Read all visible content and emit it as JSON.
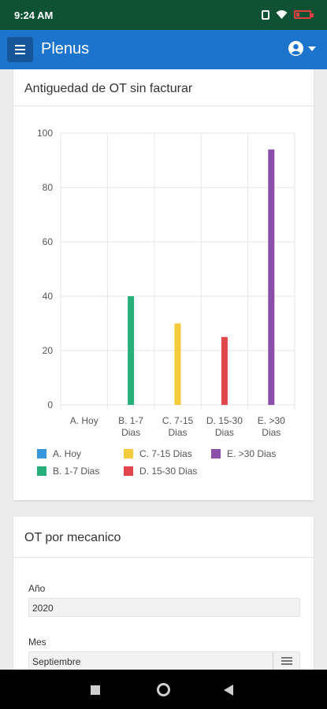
{
  "status_bar": {
    "time": "9:24 AM",
    "icons": [
      "vibrate-icon",
      "wifi-icon",
      "battery-low-icon"
    ]
  },
  "app_bar": {
    "title": "Plenus",
    "menu_icon": "hamburger-menu-icon",
    "user_icon": "user-circle-icon"
  },
  "chart_card": {
    "title": "Antiguedad de OT sin facturar"
  },
  "chart_data": {
    "type": "bar",
    "title": "Antiguedad de OT sin facturar",
    "categories": [
      [
        "A. Hoy"
      ],
      [
        "B. 1-7",
        "Dias"
      ],
      [
        "C. 7-15",
        "Dias"
      ],
      [
        "D. 15-30",
        "Dias"
      ],
      [
        "E. >30",
        "Dias"
      ]
    ],
    "values": [
      0,
      40,
      30,
      25,
      94
    ],
    "colors": [
      "#3498db",
      "#27ae7a",
      "#f4cb3a",
      "#e0474c",
      "#8a4fa8"
    ],
    "ylim": [
      0,
      100
    ],
    "yticks": [
      "0",
      "20",
      "40",
      "60",
      "80",
      "100"
    ],
    "grid": true,
    "legend_position": "bottom",
    "legend": [
      "A. Hoy",
      "B. 1-7 Dias",
      "C. 7-15 Dias",
      "D. 15-30 Dias",
      "E. >30 Dias"
    ]
  },
  "mechanic_card": {
    "title": "OT por mecanico",
    "year_label": "Año",
    "year_value": "2020",
    "month_label": "Mes",
    "month_value": "Septiembre",
    "month_button_icon": "list-icon"
  },
  "nav_bar": {
    "icons": [
      "recent-apps-icon",
      "home-icon",
      "back-icon"
    ]
  },
  "colors": {
    "status_bar": "#0f5233",
    "app_bar": "#1c74cc",
    "menu_button": "#15569b"
  }
}
